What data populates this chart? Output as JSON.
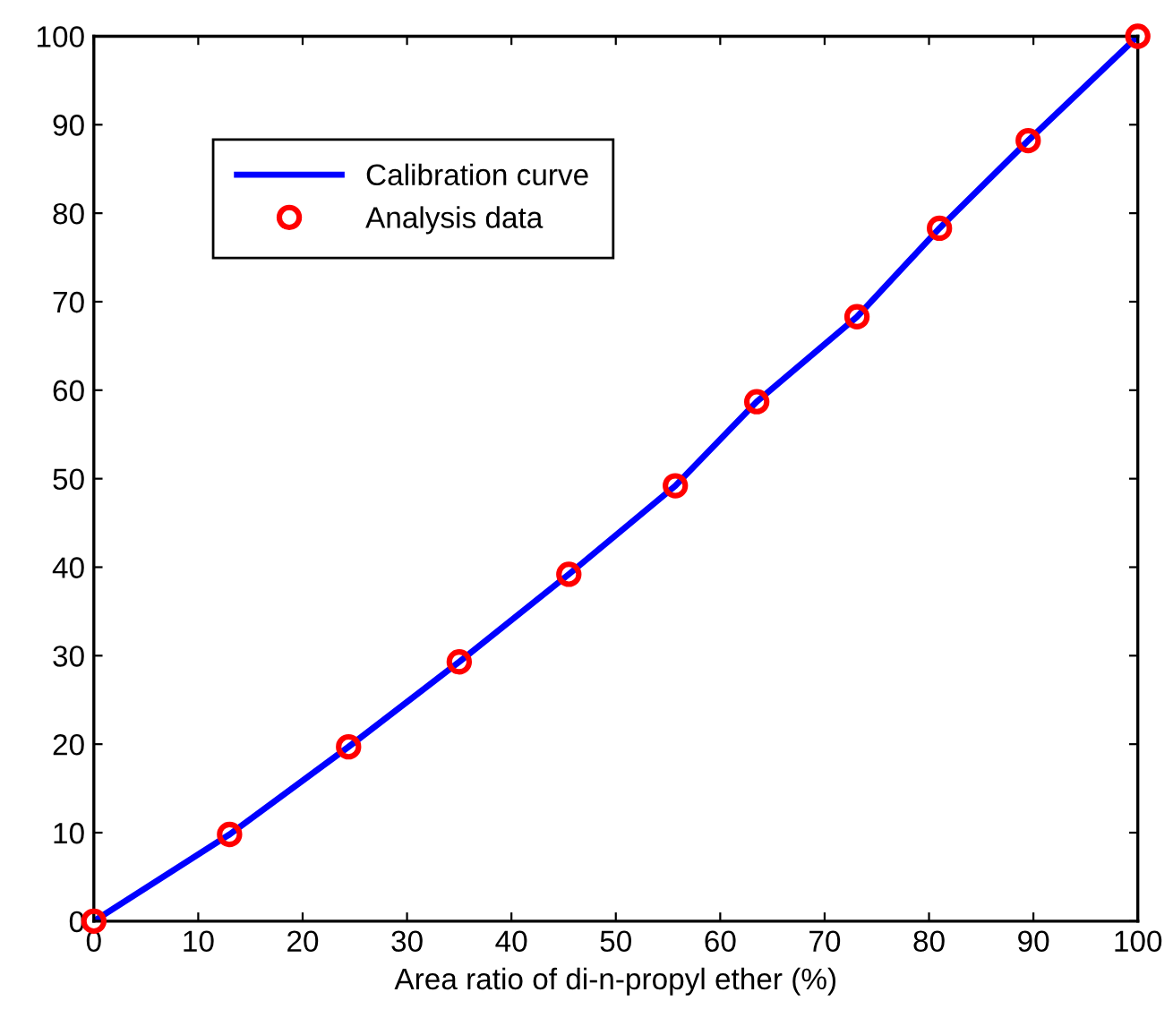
{
  "chart_data": {
    "type": "line",
    "xlabel": "Area ratio of di-n-propyl ether (%)",
    "series": [
      {
        "name": "Calibration curve",
        "color": "#0000ff",
        "marker": "none",
        "line_style": "solid",
        "x": [
          0,
          13.0,
          24.4,
          35.0,
          45.5,
          55.7,
          63.5,
          73.1,
          81.0,
          89.5,
          100
        ],
        "values": [
          0,
          9.8,
          19.7,
          29.3,
          39.2,
          49.2,
          58.7,
          68.3,
          78.3,
          88.2,
          100
        ]
      },
      {
        "name": "Analysis data",
        "type": "scatter",
        "color": "#ff0000",
        "marker": "circle",
        "x": [
          0,
          13.0,
          24.4,
          35.0,
          45.5,
          55.7,
          63.5,
          73.1,
          81.0,
          89.5,
          100
        ],
        "values": [
          0,
          9.8,
          19.7,
          29.3,
          39.2,
          49.2,
          58.7,
          68.3,
          78.3,
          88.2,
          100
        ]
      }
    ],
    "xlim": [
      0,
      100
    ],
    "ylim": [
      0,
      100
    ],
    "xticks": [
      0,
      10,
      20,
      30,
      40,
      50,
      60,
      70,
      80,
      90,
      100
    ],
    "yticks": [
      0,
      10,
      20,
      30,
      40,
      50,
      60,
      70,
      80,
      90,
      100
    ],
    "grid": false,
    "legend": "top left"
  }
}
